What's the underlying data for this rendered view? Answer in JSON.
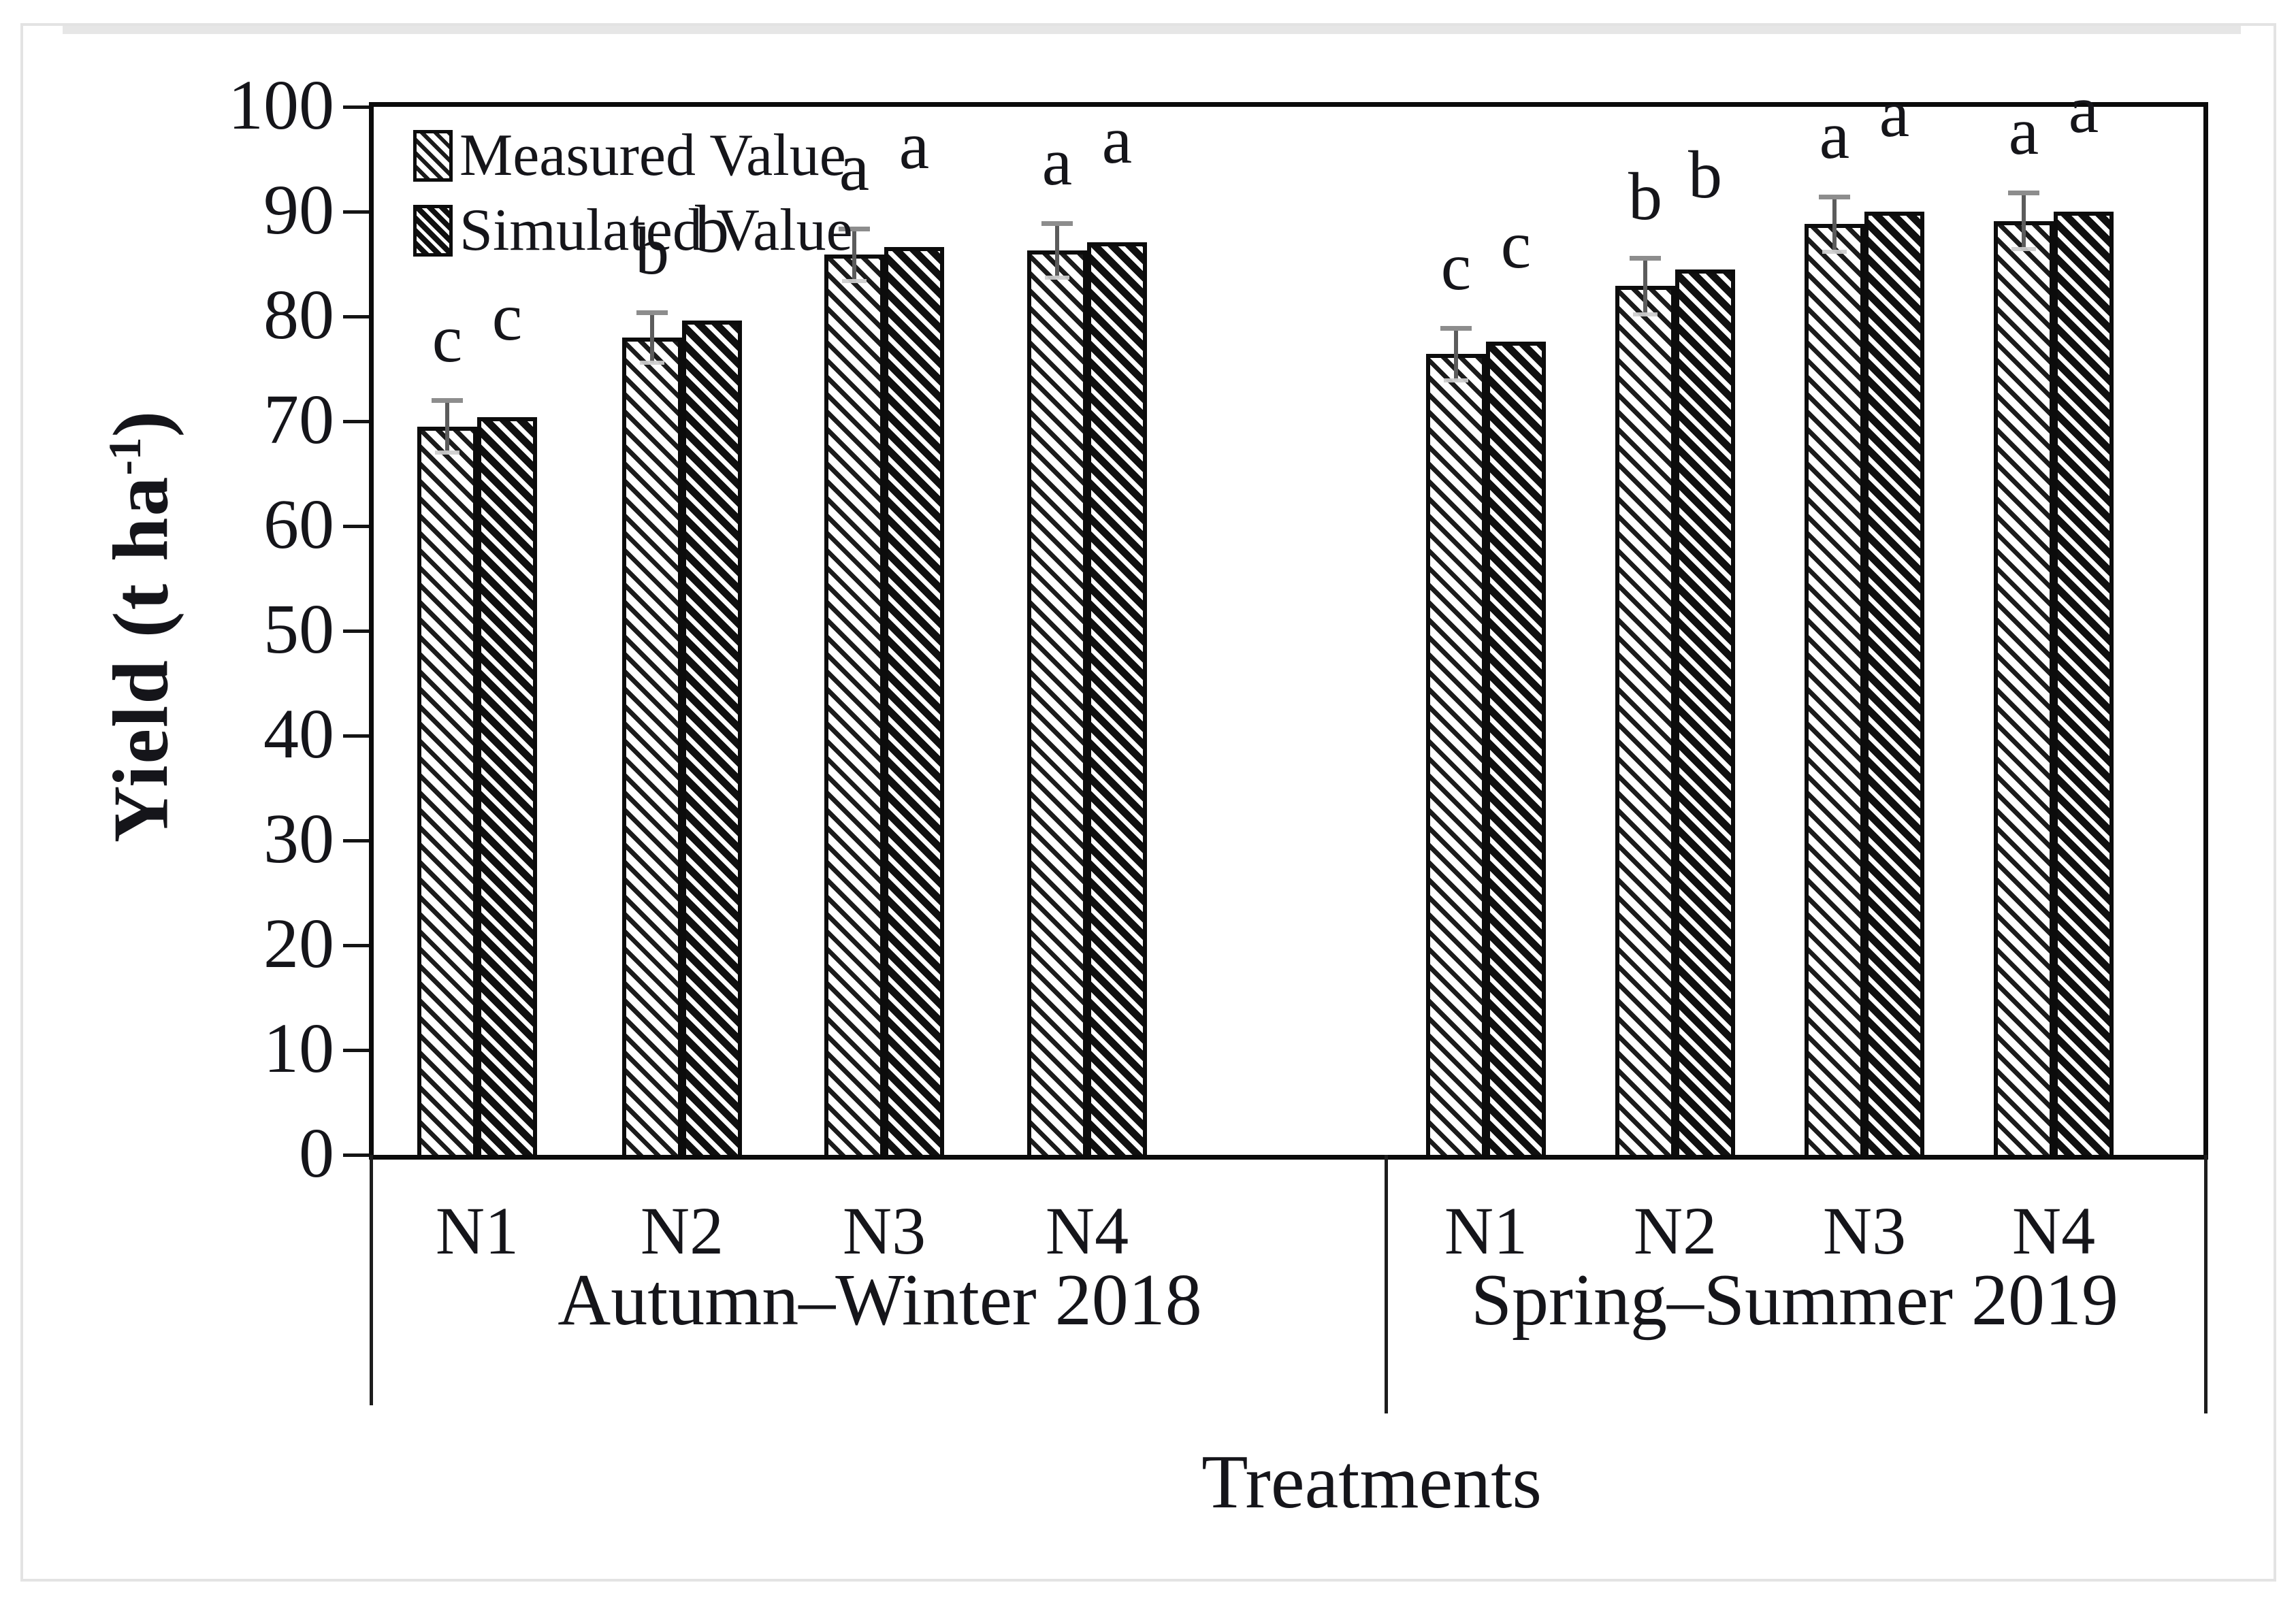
{
  "chart_data": {
    "type": "bar",
    "title": "",
    "xlabel": "Treatments",
    "ylabel": "Yield (t ha-1)",
    "ylabel_parts": {
      "prefix": "Yield (t ha",
      "sup": "-1",
      "suffix": ")"
    },
    "ylim": [
      0,
      100
    ],
    "yticks": [
      0,
      10,
      20,
      30,
      40,
      50,
      60,
      70,
      80,
      90,
      100
    ],
    "grid": false,
    "legend_position": "top-left-inside",
    "series": [
      {
        "name": "Measured Value",
        "hatch": "light-diagonal"
      },
      {
        "name": "Simulated Value",
        "hatch": "dense-diagonal"
      }
    ],
    "groups": [
      {
        "label": "Autumn–Winter 2018",
        "bars": [
          {
            "category": "N1",
            "measured": 69.5,
            "simulated": 70.4,
            "error": 2.5,
            "letters": [
              "c",
              "c"
            ]
          },
          {
            "category": "N2",
            "measured": 78.0,
            "simulated": 79.6,
            "error": 2.4,
            "letters": [
              "b",
              "b"
            ]
          },
          {
            "category": "N3",
            "measured": 85.9,
            "simulated": 86.6,
            "error": 2.5,
            "letters": [
              "a",
              "a"
            ]
          },
          {
            "category": "N4",
            "measured": 86.3,
            "simulated": 87.1,
            "error": 2.6,
            "letters": [
              "a",
              "a"
            ]
          }
        ]
      },
      {
        "label": "Spring–Summer 2019",
        "bars": [
          {
            "category": "N1",
            "measured": 76.4,
            "simulated": 77.6,
            "error": 2.5,
            "letters": [
              "c",
              "c"
            ]
          },
          {
            "category": "N2",
            "measured": 82.9,
            "simulated": 84.5,
            "error": 2.7,
            "letters": [
              "b",
              "b"
            ]
          },
          {
            "category": "N3",
            "measured": 88.8,
            "simulated": 90.0,
            "error": 2.6,
            "letters": [
              "a",
              "a"
            ]
          },
          {
            "category": "N4",
            "measured": 89.1,
            "simulated": 90.0,
            "error": 2.7,
            "letters": [
              "a",
              "a"
            ]
          }
        ]
      }
    ],
    "colors": {
      "bar_outline": "#0c0c0c",
      "text": "#15151a",
      "error_bar": "#5c5c5c",
      "error_cap": "#8d8d8d",
      "frame": "#0b0b0b",
      "outer_border": "#e3e3e3"
    }
  }
}
